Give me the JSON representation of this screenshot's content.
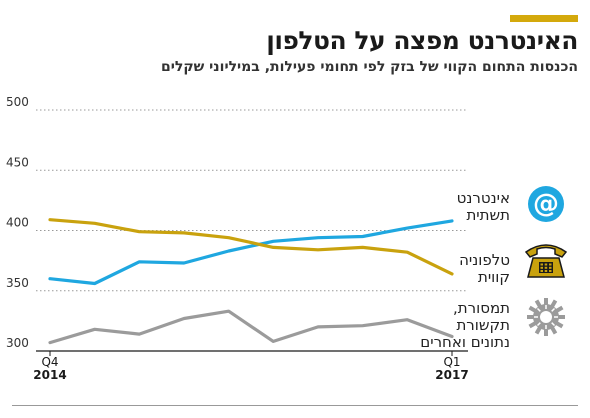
{
  "header": {
    "title": "האינטרנט מפצה על הטלפון",
    "subtitle": "הכנסות התחום הקווי של בזק לפי תחומי פעילות, במיליוני שקלים"
  },
  "colors": {
    "accent": "#d4a90c",
    "internet": "#1fa7e0",
    "landline": "#c9a20e",
    "other": "#9b9b9b"
  },
  "legend": [
    {
      "label": "אינטרנט\nתשתית",
      "icon": "at-sign-icon"
    },
    {
      "label": "טלפוניה\nקווית",
      "icon": "telephone-icon"
    },
    {
      "label": "תמסורת,\nתקשורת\nנתונים ואחרים",
      "icon": "gear-icon"
    }
  ],
  "chart_data": {
    "type": "line",
    "x_labels": {
      "start": [
        "Q4",
        "2014"
      ],
      "end": [
        "Q1",
        "2017"
      ]
    },
    "ylim": [
      300,
      500
    ],
    "yticks": [
      300,
      350,
      400,
      450,
      500
    ],
    "grid": true,
    "series": [
      {
        "key": "internet",
        "values": [
          360,
          356,
          374,
          373,
          383,
          391,
          394,
          395,
          402,
          408
        ]
      },
      {
        "key": "landline",
        "values": [
          409,
          406,
          399,
          398,
          394,
          386,
          384,
          386,
          382,
          364
        ]
      },
      {
        "key": "other",
        "values": [
          307,
          318,
          314,
          327,
          333,
          308,
          320,
          321,
          326,
          312
        ]
      }
    ]
  }
}
